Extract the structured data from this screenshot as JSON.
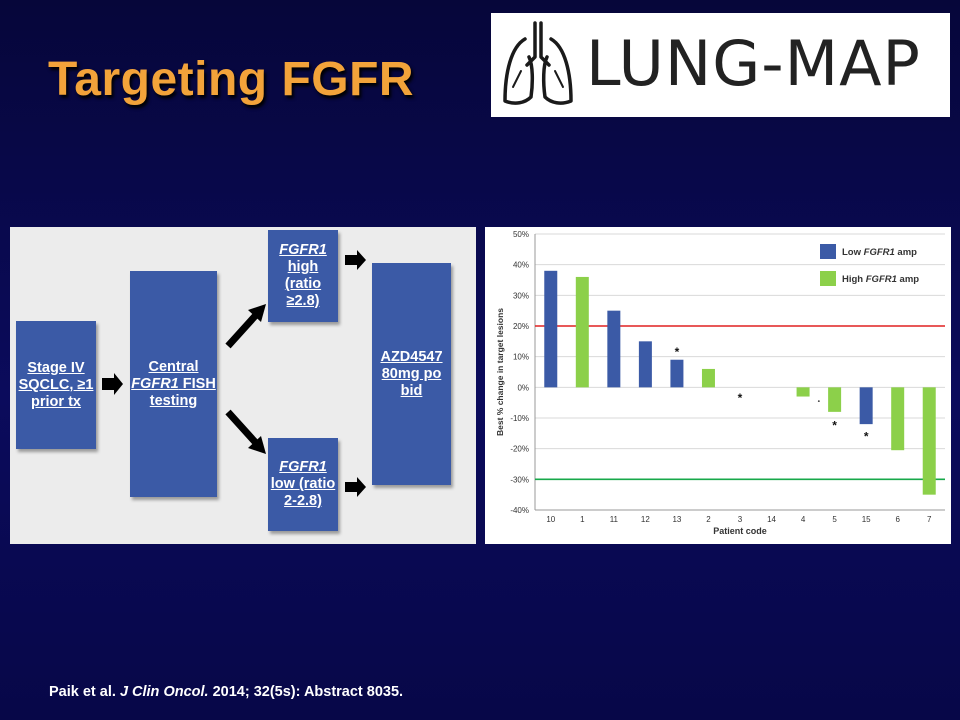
{
  "slide": {
    "title": "Targeting FGFR"
  },
  "logo": {
    "text": "LUNG-MAP",
    "icon": "lungs-icon"
  },
  "flowchart": {
    "box_stage": [
      "Stage IV",
      "SQCLC, ≥1",
      "prior tx"
    ],
    "box_central": {
      "line1": "Central",
      "line2_gene": "FGFR1",
      "line2_rest": " FISH",
      "line3": "testing"
    },
    "box_high": {
      "gene": "FGFR1",
      "lines": [
        "high",
        "(ratio",
        "≥2.8)"
      ]
    },
    "box_low": {
      "gene": "FGFR1",
      "lines": [
        "low (ratio",
        "2-2.8)"
      ]
    },
    "box_drug": [
      "AZD4547",
      "80mg po",
      "bid"
    ],
    "box_color": "#3b5aa6"
  },
  "chart_data": {
    "type": "bar",
    "ylabel": "Best % change in target lesions",
    "xlabel": "Patient code",
    "ylim": [
      -40,
      50
    ],
    "yticks": [
      50,
      40,
      30,
      20,
      10,
      0,
      -10,
      -20,
      -30,
      -40
    ],
    "ytick_labels": [
      "50%",
      "40%",
      "30%",
      "20%",
      "10%",
      "0%",
      "-10%",
      "-20%",
      "-30%",
      "-40%"
    ],
    "categories": [
      "10",
      "1",
      "11",
      "12",
      "13",
      "2",
      "3",
      "14",
      "4",
      "5",
      "15",
      "6",
      "7"
    ],
    "values": [
      38,
      36,
      25,
      15,
      9,
      6,
      0,
      0,
      -3,
      -8,
      -12,
      -20.5,
      -35
    ],
    "groups": [
      "low",
      "high",
      "low",
      "low",
      "low",
      "high",
      "none",
      "none",
      "high",
      "high",
      "low",
      "high",
      "high"
    ],
    "stars": [
      {
        "category": "13",
        "value": 11.5
      },
      {
        "category": "3",
        "value": -3.5
      },
      {
        "category": "5",
        "value": -12.5
      },
      {
        "category": "15",
        "value": -16
      }
    ],
    "small_dot": {
      "category": "4",
      "value": -4.5
    },
    "reference_lines": [
      {
        "value": 20,
        "color": "#e02020"
      },
      {
        "value": -30,
        "color": "#17a84a"
      }
    ],
    "legend": {
      "placement": "top-right",
      "entries": [
        {
          "key": "low",
          "prefix": "Low ",
          "gene": "FGFR1",
          "suffix": " amp",
          "color": "#3b5aa6"
        },
        {
          "key": "high",
          "prefix": "High ",
          "gene": "FGFR1",
          "suffix": " amp",
          "color": "#8cd04a"
        }
      ]
    },
    "grid": true
  },
  "citation": {
    "authors": "Paik et al. ",
    "journal": "J Clin Oncol.",
    "details": " 2014; 32(5s): Abstract 8035."
  },
  "colors": {
    "title": "#f2a33a",
    "background": "#0b0b5c"
  }
}
